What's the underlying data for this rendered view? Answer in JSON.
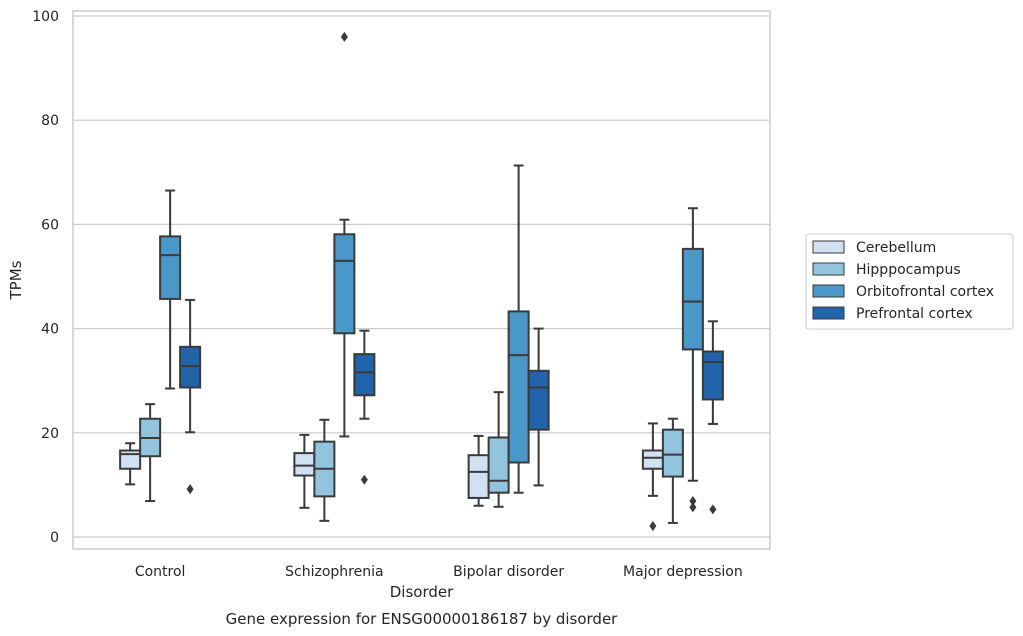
{
  "chart_data": {
    "type": "box",
    "title": "Gene expression for ENSG00000186187 by disorder",
    "xlabel": "Disorder",
    "ylabel": "TPMs",
    "ylim": [
      -2.5,
      101
    ],
    "yticks": [
      0,
      20,
      40,
      60,
      80,
      100
    ],
    "grid": true,
    "legend_position": "right",
    "categories": [
      "Control",
      "Schizophrenia",
      "Bipolar disorder",
      "Major depression"
    ],
    "series": [
      {
        "name": "Cerebellum",
        "color": "#cfe1f2",
        "boxes": [
          {
            "whislo": 10.1,
            "q1": 13.1,
            "med": 15.9,
            "q3": 16.6,
            "whishi": 18.0,
            "fliers": []
          },
          {
            "whislo": 5.6,
            "q1": 11.8,
            "med": 13.7,
            "q3": 16.1,
            "whishi": 19.6,
            "fliers": []
          },
          {
            "whislo": 6.0,
            "q1": 7.5,
            "med": 12.5,
            "q3": 15.7,
            "whishi": 19.4,
            "fliers": []
          },
          {
            "whislo": 7.9,
            "q1": 13.1,
            "med": 15.2,
            "q3": 16.6,
            "whishi": 21.8,
            "fliers": [
              2.1
            ]
          }
        ]
      },
      {
        "name": "Hipppocampus",
        "color": "#93c4de",
        "boxes": [
          {
            "whislo": 6.9,
            "q1": 15.5,
            "med": 19.0,
            "q3": 22.7,
            "whishi": 25.5,
            "fliers": []
          },
          {
            "whislo": 3.1,
            "q1": 7.8,
            "med": 13.1,
            "q3": 18.3,
            "whishi": 22.5,
            "fliers": []
          },
          {
            "whislo": 5.8,
            "q1": 8.5,
            "med": 10.8,
            "q3": 19.1,
            "whishi": 27.8,
            "fliers": []
          },
          {
            "whislo": 2.7,
            "q1": 11.6,
            "med": 15.8,
            "q3": 20.6,
            "whishi": 22.7,
            "fliers": []
          }
        ]
      },
      {
        "name": "Orbitofrontal cortex",
        "color": "#4a98c9",
        "boxes": [
          {
            "whislo": 28.5,
            "q1": 45.7,
            "med": 54.1,
            "q3": 57.7,
            "whishi": 66.5,
            "fliers": []
          },
          {
            "whislo": 19.3,
            "q1": 39.1,
            "med": 53.0,
            "q3": 58.1,
            "whishi": 60.9,
            "fliers": [
              96.0
            ]
          },
          {
            "whislo": 8.5,
            "q1": 14.3,
            "med": 34.9,
            "q3": 43.3,
            "whishi": 71.3,
            "fliers": []
          },
          {
            "whislo": 10.8,
            "q1": 36.0,
            "med": 45.2,
            "q3": 55.3,
            "whishi": 63.1,
            "fliers": [
              6.9,
              5.7
            ]
          }
        ]
      },
      {
        "name": "Prefrontal cortex",
        "color": "#2164ab",
        "boxes": [
          {
            "whislo": 20.1,
            "q1": 28.7,
            "med": 32.8,
            "q3": 36.5,
            "whishi": 45.5,
            "fliers": [
              9.2
            ]
          },
          {
            "whislo": 22.7,
            "q1": 27.2,
            "med": 31.6,
            "q3": 35.1,
            "whishi": 39.6,
            "fliers": [
              11.0
            ]
          },
          {
            "whislo": 9.9,
            "q1": 20.6,
            "med": 28.7,
            "q3": 31.9,
            "whishi": 40.0,
            "fliers": []
          },
          {
            "whislo": 21.7,
            "q1": 26.4,
            "med": 33.6,
            "q3": 35.6,
            "whishi": 41.4,
            "fliers": [
              5.3
            ]
          }
        ]
      }
    ]
  }
}
